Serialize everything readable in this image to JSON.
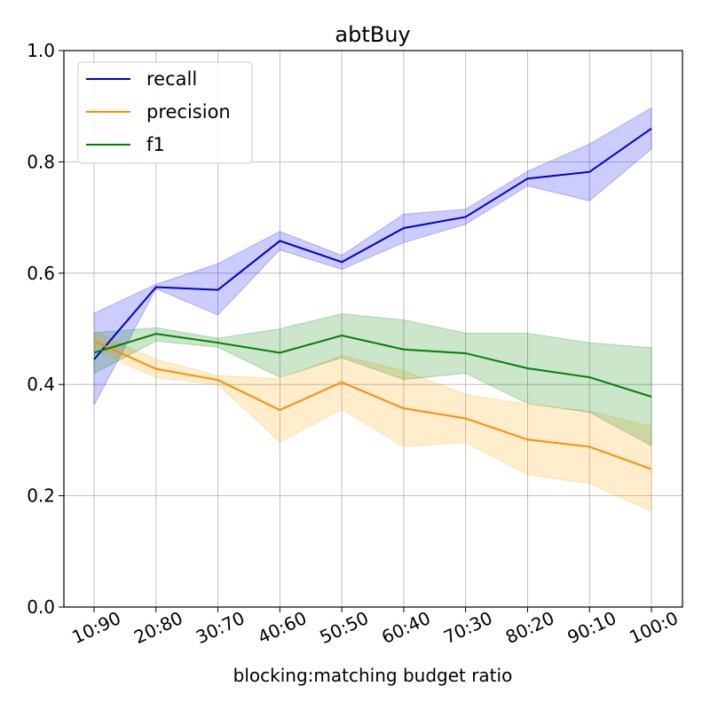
{
  "chart_data": {
    "type": "line",
    "title": "abtBuy",
    "xlabel": "blocking:matching  budget ratio",
    "ylabel": "",
    "categories": [
      "10:90",
      "20:80",
      "30:70",
      "40:60",
      "50:50",
      "60:40",
      "70:30",
      "80:20",
      "90:10",
      "100:0"
    ],
    "ylim": [
      0.0,
      1.0
    ],
    "yticks": [
      "0.0",
      "0.2",
      "0.4",
      "0.6",
      "0.8",
      "1.0"
    ],
    "grid": true,
    "legend_position": "top-left",
    "series": [
      {
        "name": "recall",
        "color": "#0000cc",
        "band_color": "#0000ff",
        "values": [
          0.445,
          0.575,
          0.57,
          0.658,
          0.62,
          0.681,
          0.701,
          0.77,
          0.782,
          0.86
        ],
        "upper": [
          0.528,
          0.58,
          0.617,
          0.675,
          0.632,
          0.706,
          0.715,
          0.783,
          0.832,
          0.897
        ],
        "lower": [
          0.363,
          0.572,
          0.525,
          0.642,
          0.607,
          0.655,
          0.688,
          0.757,
          0.73,
          0.823
        ]
      },
      {
        "name": "precision",
        "color": "#ff8c00",
        "band_color": "#ffa500",
        "values": [
          0.478,
          0.428,
          0.408,
          0.354,
          0.404,
          0.357,
          0.339,
          0.301,
          0.288,
          0.248
        ],
        "upper": [
          0.495,
          0.445,
          0.416,
          0.41,
          0.452,
          0.425,
          0.382,
          0.364,
          0.352,
          0.325
        ],
        "lower": [
          0.462,
          0.412,
          0.4,
          0.297,
          0.355,
          0.288,
          0.296,
          0.238,
          0.222,
          0.172
        ]
      },
      {
        "name": "f1",
        "color": "#008000",
        "band_color": "#008000",
        "values": [
          0.457,
          0.491,
          0.475,
          0.457,
          0.488,
          0.463,
          0.456,
          0.429,
          0.413,
          0.378
        ],
        "upper": [
          0.493,
          0.502,
          0.483,
          0.5,
          0.527,
          0.516,
          0.492,
          0.492,
          0.475,
          0.466
        ],
        "lower": [
          0.42,
          0.478,
          0.467,
          0.413,
          0.448,
          0.409,
          0.42,
          0.366,
          0.35,
          0.29
        ]
      }
    ]
  }
}
